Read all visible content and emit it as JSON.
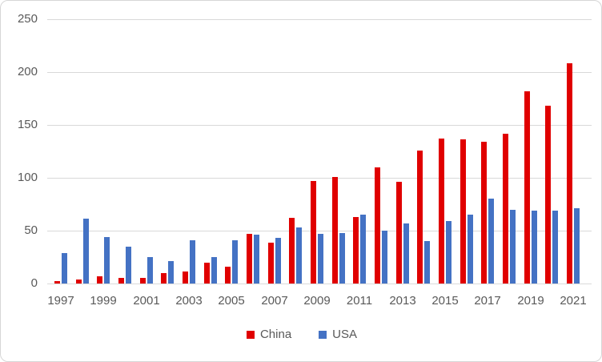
{
  "chart_data": {
    "type": "bar",
    "title": "",
    "xlabel": "",
    "ylabel": "",
    "categories": [
      1997,
      1998,
      1999,
      2000,
      2001,
      2002,
      2003,
      2004,
      2005,
      2006,
      2007,
      2008,
      2009,
      2010,
      2011,
      2012,
      2013,
      2014,
      2015,
      2016,
      2017,
      2018,
      2019,
      2020,
      2021
    ],
    "series": [
      {
        "name": "China",
        "color": "#e00000",
        "values": [
          2,
          4,
          7,
          5,
          5,
          10,
          11,
          20,
          16,
          47,
          39,
          62,
          97,
          101,
          63,
          110,
          96,
          126,
          137,
          136,
          134,
          142,
          182,
          168,
          208
        ]
      },
      {
        "name": "USA",
        "color": "#4472c4",
        "values": [
          29,
          61,
          44,
          35,
          25,
          21,
          41,
          25,
          41,
          46,
          43,
          53,
          47,
          48,
          65,
          50,
          57,
          40,
          59,
          65,
          80,
          70,
          69,
          69,
          71
        ]
      }
    ],
    "ylim": [
      0,
      250
    ],
    "yticks": [
      0,
      50,
      100,
      150,
      200,
      250
    ],
    "xtick_labels": [
      "1997",
      "1999",
      "2001",
      "2003",
      "2005",
      "2007",
      "2009",
      "2011",
      "2013",
      "2015",
      "2017",
      "2019",
      "2021"
    ],
    "grid": true,
    "legend_position": "bottom"
  },
  "colors": {
    "china": "#e00000",
    "usa": "#4472c4",
    "gridline": "#d9d9d9",
    "tick_text": "#595959",
    "background": "#ffffff",
    "frame_border": "#d6d6d6"
  }
}
